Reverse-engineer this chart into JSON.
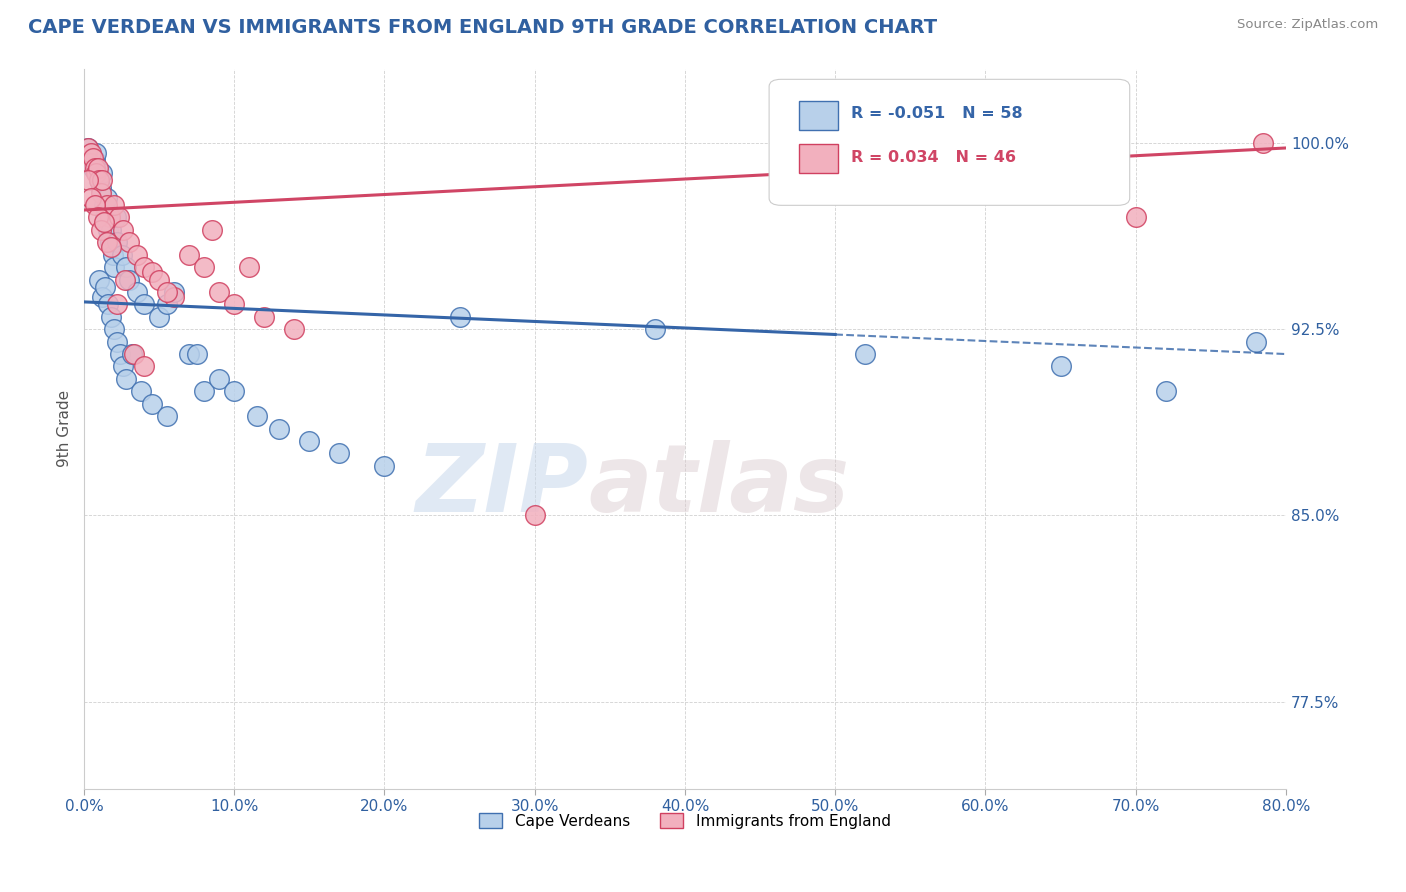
{
  "title": "CAPE VERDEAN VS IMMIGRANTS FROM ENGLAND 9TH GRADE CORRELATION CHART",
  "source_text": "Source: ZipAtlas.com",
  "ylabel": "9th Grade",
  "xlim": [
    0.0,
    80.0
  ],
  "ylim": [
    74.0,
    103.0
  ],
  "yticks": [
    77.5,
    85.0,
    92.5,
    100.0
  ],
  "xticks": [
    0.0,
    10.0,
    20.0,
    30.0,
    40.0,
    50.0,
    60.0,
    70.0,
    80.0
  ],
  "blue_label": "Cape Verdeans",
  "pink_label": "Immigrants from England",
  "blue_R": "-0.051",
  "blue_N": "58",
  "pink_R": "0.034",
  "pink_N": "46",
  "blue_color": "#b8d0ea",
  "pink_color": "#f2b0be",
  "blue_edge_color": "#4070b0",
  "pink_edge_color": "#d04060",
  "blue_line_color": "#3565a8",
  "pink_line_color": "#d04565",
  "watermark_zip": "ZIP",
  "watermark_atlas": "atlas",
  "blue_line_x0": 0.0,
  "blue_line_y0": 93.6,
  "blue_line_x1": 80.0,
  "blue_line_y1": 91.5,
  "blue_solid_end": 50.0,
  "pink_line_x0": 0.0,
  "pink_line_y0": 97.3,
  "pink_line_x1": 80.0,
  "pink_line_y1": 99.8,
  "blue_scatter_x": [
    0.3,
    0.4,
    0.5,
    0.6,
    0.7,
    0.8,
    0.9,
    1.0,
    1.1,
    1.2,
    1.3,
    1.4,
    1.5,
    1.6,
    1.7,
    1.8,
    1.9,
    2.0,
    2.1,
    2.2,
    2.5,
    2.8,
    3.0,
    3.5,
    4.0,
    5.0,
    5.5,
    6.0,
    7.0,
    8.0,
    1.0,
    1.2,
    1.4,
    1.6,
    1.8,
    2.0,
    2.2,
    2.4,
    2.6,
    2.8,
    3.2,
    3.8,
    4.5,
    5.5,
    7.5,
    9.0,
    10.0,
    11.5,
    13.0,
    15.0,
    17.0,
    20.0,
    25.0,
    38.0,
    52.0,
    65.0,
    72.0,
    78.0
  ],
  "blue_scatter_y": [
    99.8,
    99.5,
    99.2,
    99.0,
    99.3,
    99.6,
    98.8,
    98.5,
    98.2,
    98.8,
    97.5,
    97.0,
    97.8,
    96.5,
    96.0,
    96.5,
    95.5,
    95.0,
    97.0,
    96.0,
    95.5,
    95.0,
    94.5,
    94.0,
    93.5,
    93.0,
    93.5,
    94.0,
    91.5,
    90.0,
    94.5,
    93.8,
    94.2,
    93.5,
    93.0,
    92.5,
    92.0,
    91.5,
    91.0,
    90.5,
    91.5,
    90.0,
    89.5,
    89.0,
    91.5,
    90.5,
    90.0,
    89.0,
    88.5,
    88.0,
    87.5,
    87.0,
    93.0,
    92.5,
    91.5,
    91.0,
    90.0,
    92.0
  ],
  "pink_scatter_x": [
    0.2,
    0.3,
    0.4,
    0.5,
    0.6,
    0.7,
    0.8,
    0.9,
    1.0,
    1.1,
    1.2,
    1.5,
    1.7,
    2.0,
    2.3,
    2.6,
    3.0,
    3.5,
    4.0,
    4.5,
    5.0,
    6.0,
    7.0,
    8.0,
    9.0,
    10.0,
    12.0,
    14.0,
    0.3,
    0.5,
    0.7,
    0.9,
    1.1,
    1.3,
    1.5,
    1.8,
    2.2,
    2.7,
    3.3,
    4.0,
    5.5,
    8.5,
    11.0,
    30.0,
    70.0,
    78.5
  ],
  "pink_scatter_y": [
    99.5,
    99.8,
    99.2,
    99.6,
    99.4,
    99.0,
    98.8,
    99.0,
    98.5,
    98.0,
    98.5,
    97.5,
    97.0,
    97.5,
    97.0,
    96.5,
    96.0,
    95.5,
    95.0,
    94.8,
    94.5,
    93.8,
    95.5,
    95.0,
    94.0,
    93.5,
    93.0,
    92.5,
    98.5,
    97.8,
    97.5,
    97.0,
    96.5,
    96.8,
    96.0,
    95.8,
    93.5,
    94.5,
    91.5,
    91.0,
    94.0,
    96.5,
    95.0,
    85.0,
    97.0,
    100.0
  ]
}
